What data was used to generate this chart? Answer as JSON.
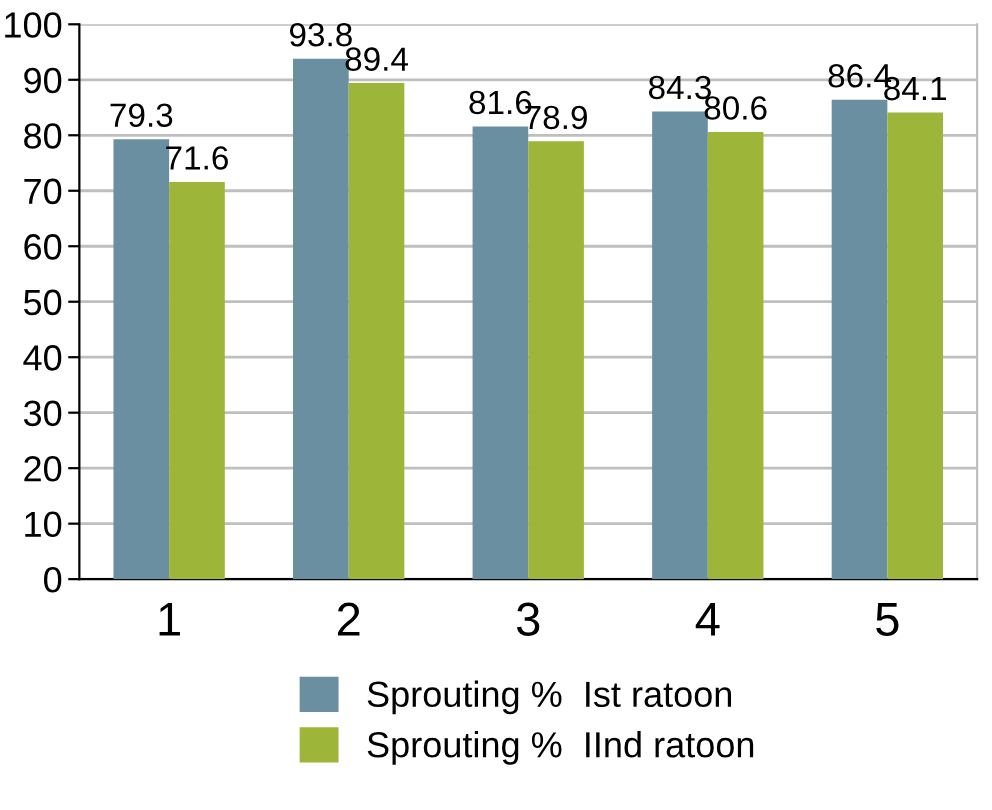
{
  "chart_data": {
    "type": "bar",
    "categories": [
      "1",
      "2",
      "3",
      "4",
      "5"
    ],
    "series": [
      {
        "name": "Sprouting %  Ist ratoon",
        "color": "#6a8fa0",
        "values": [
          79.3,
          93.8,
          81.6,
          84.3,
          86.4
        ]
      },
      {
        "name": "Sprouting %  IInd ratoon",
        "color": "#9db63a",
        "values": [
          71.6,
          89.4,
          78.9,
          80.6,
          84.1
        ]
      }
    ],
    "ylim": [
      0,
      100
    ],
    "yticks": [
      0,
      10,
      20,
      30,
      40,
      50,
      60,
      70,
      80,
      90,
      100
    ],
    "grid": "y",
    "legend": "bottom",
    "data_labels": true
  }
}
